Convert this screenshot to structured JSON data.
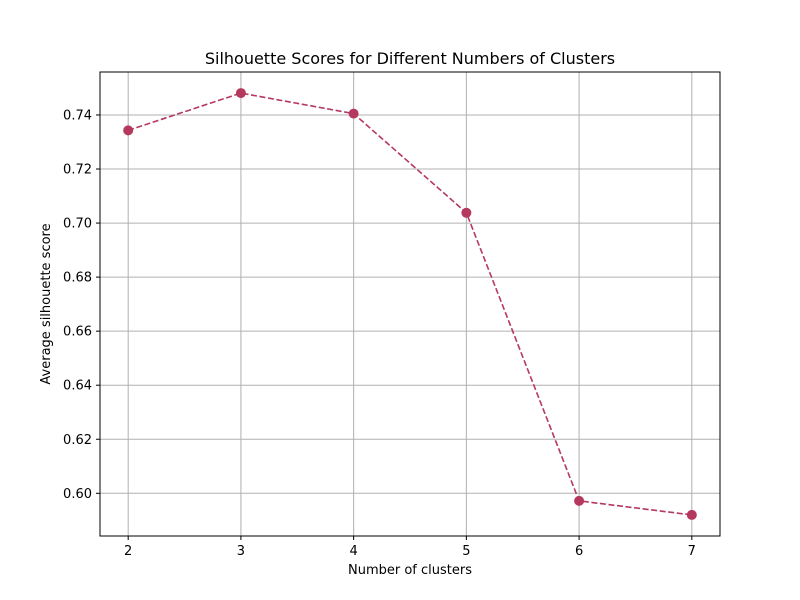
{
  "chart_data": {
    "type": "line",
    "title": "Silhouette Scores for Different Numbers of Clusters",
    "xlabel": "Number of clusters",
    "ylabel": "Average silhouette score",
    "x": [
      2,
      3,
      4,
      5,
      6,
      7
    ],
    "series": [
      {
        "values": [
          0.7343,
          0.7481,
          0.7405,
          0.7038,
          0.5972,
          0.592
        ],
        "color": "#b5395e",
        "line_style": "dashed",
        "marker": "circle"
      }
    ],
    "xticks": [
      "2",
      "3",
      "4",
      "5",
      "6",
      "7"
    ],
    "yticks": [
      "0.60",
      "0.62",
      "0.64",
      "0.66",
      "0.68",
      "0.70",
      "0.72",
      "0.74"
    ],
    "xlim": [
      1.75,
      7.25
    ],
    "ylim": [
      0.5842,
      0.7559
    ],
    "grid": true
  }
}
